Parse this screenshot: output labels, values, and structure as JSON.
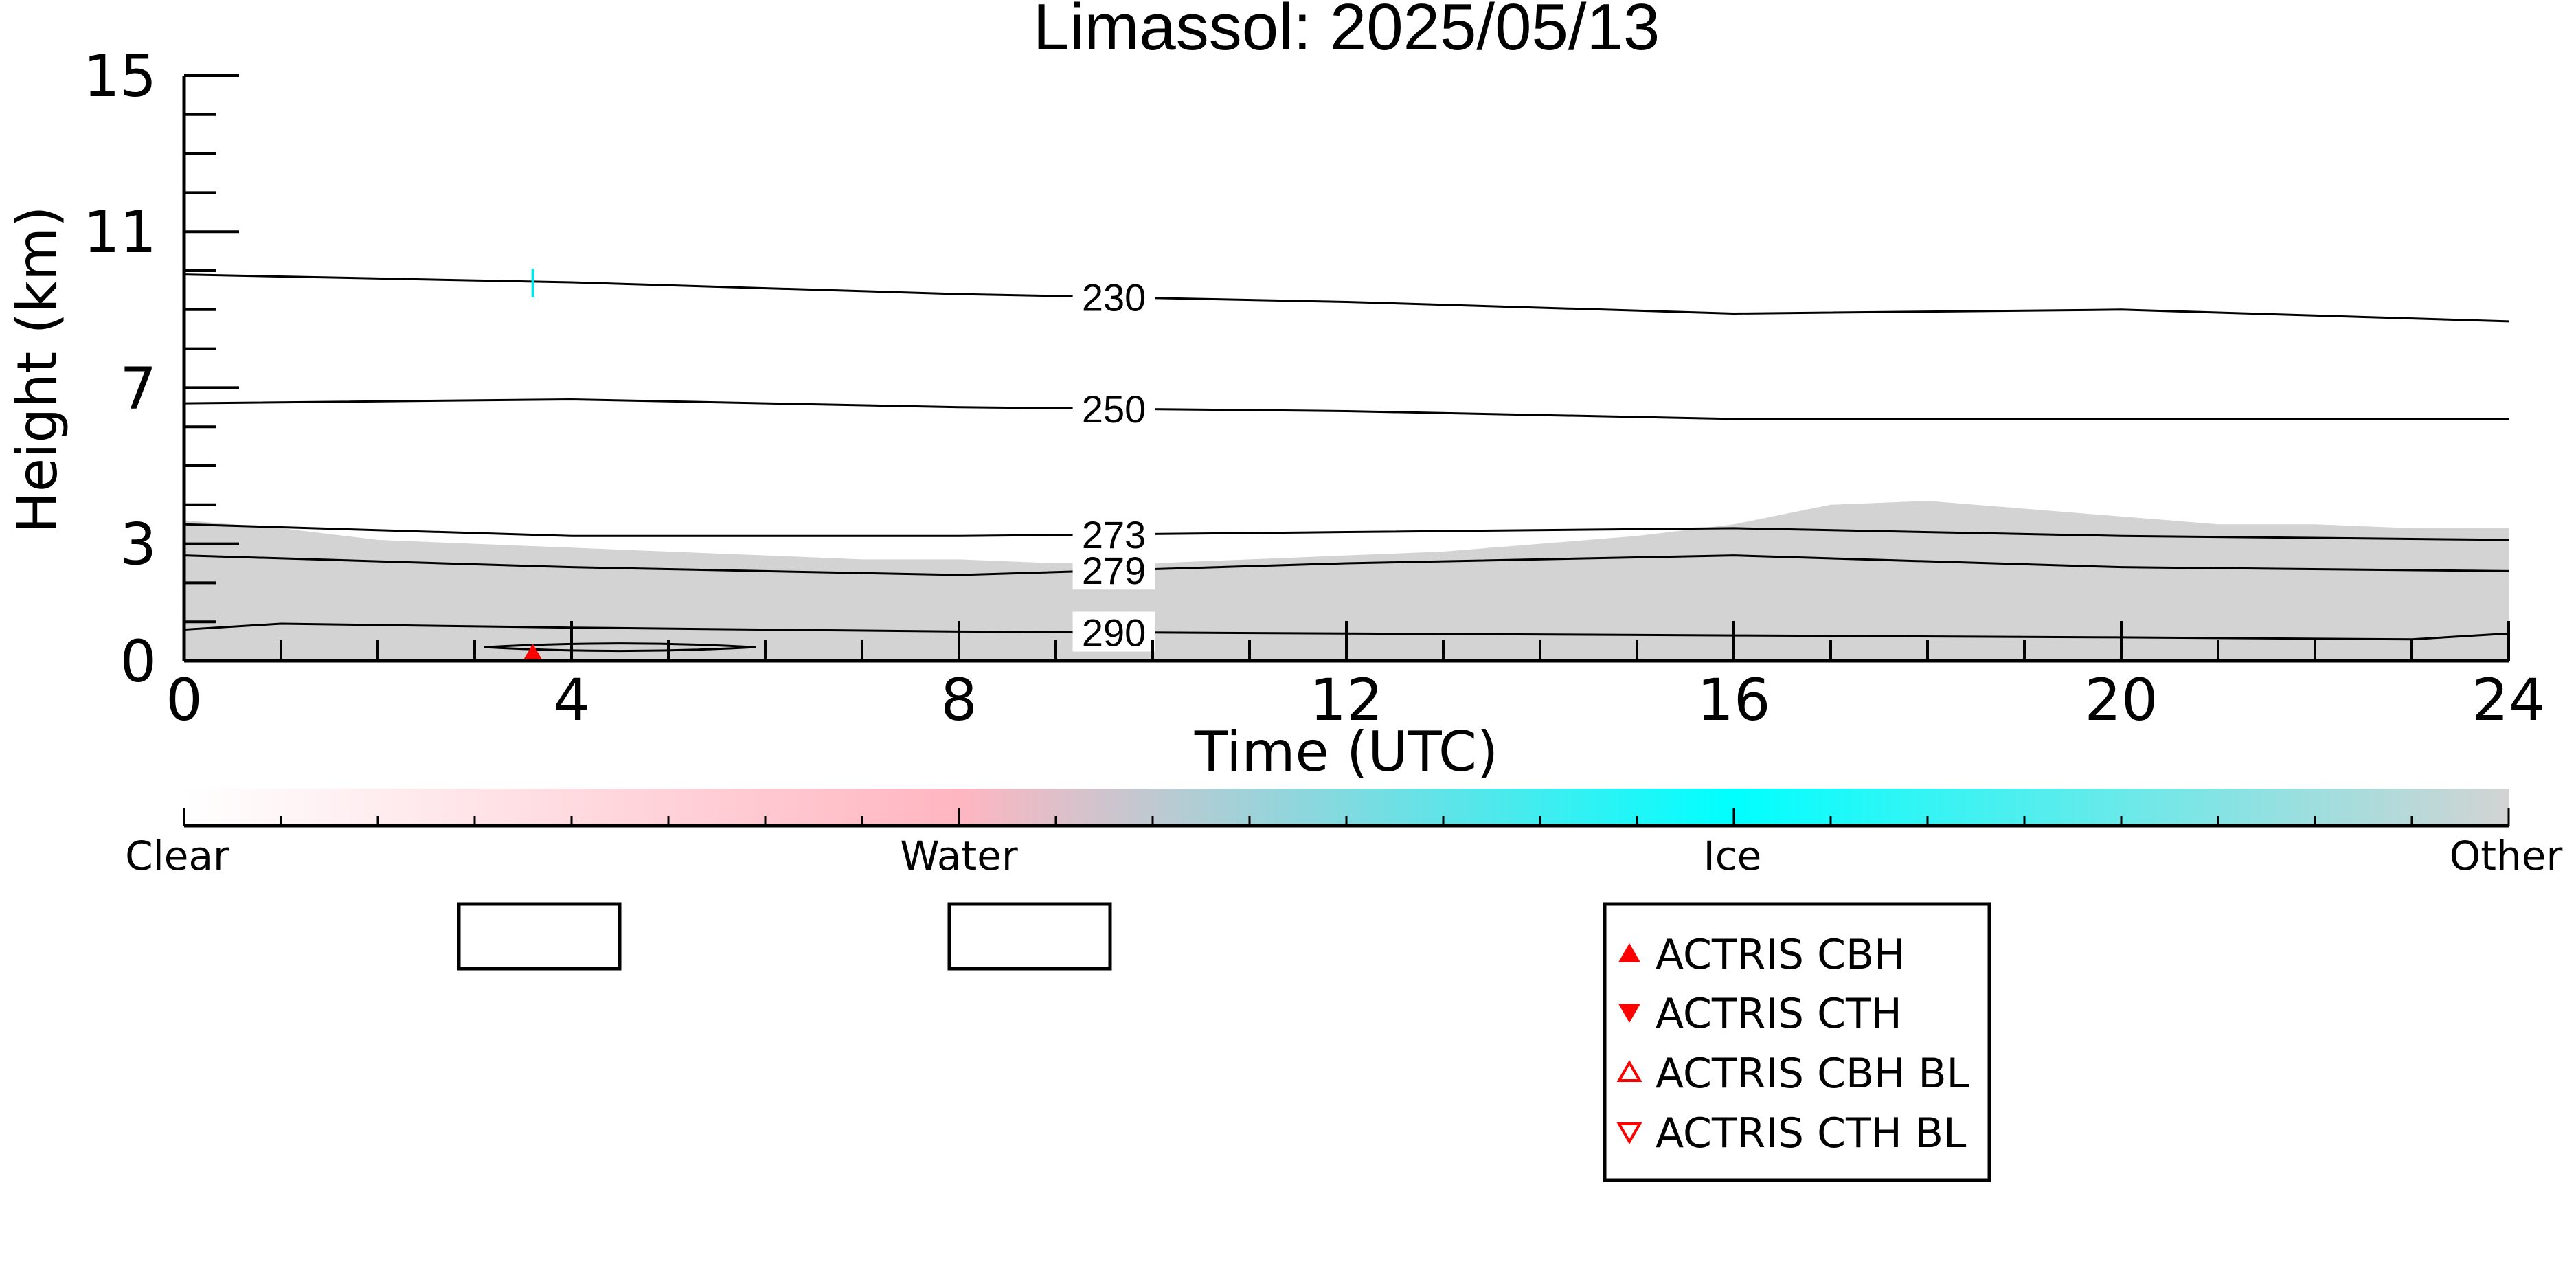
{
  "chart_data": {
    "type": "heatmap",
    "title": "Limassol: 2025/05/13",
    "xlabel": "Time (UTC)",
    "ylabel": "Height (km)",
    "xlim": [
      0,
      24
    ],
    "ylim": [
      0,
      15
    ],
    "x_ticks": [
      0,
      4,
      8,
      12,
      16,
      20,
      24
    ],
    "y_ticks": [
      0,
      3,
      7,
      11,
      15
    ],
    "categories": [
      "Clear",
      "Water",
      "Ice",
      "Other"
    ],
    "colorbar_colors": [
      "#ffffff",
      "#ffb6c1",
      "#00ffff",
      "#d3d3d3"
    ],
    "other_region_color": "#d3d3d3",
    "other_region_top": [
      {
        "x": 0,
        "y": 3.6
      },
      {
        "x": 1,
        "y": 3.4
      },
      {
        "x": 2,
        "y": 3.1
      },
      {
        "x": 3,
        "y": 3.0
      },
      {
        "x": 4,
        "y": 2.9
      },
      {
        "x": 5,
        "y": 2.8
      },
      {
        "x": 6,
        "y": 2.7
      },
      {
        "x": 7,
        "y": 2.6
      },
      {
        "x": 8,
        "y": 2.6
      },
      {
        "x": 9,
        "y": 2.5
      },
      {
        "x": 10,
        "y": 2.5
      },
      {
        "x": 11,
        "y": 2.6
      },
      {
        "x": 12,
        "y": 2.7
      },
      {
        "x": 13,
        "y": 2.8
      },
      {
        "x": 14,
        "y": 3.0
      },
      {
        "x": 15,
        "y": 3.2
      },
      {
        "x": 16,
        "y": 3.5
      },
      {
        "x": 17,
        "y": 4.0
      },
      {
        "x": 18,
        "y": 4.1
      },
      {
        "x": 19,
        "y": 3.9
      },
      {
        "x": 20,
        "y": 3.7
      },
      {
        "x": 21,
        "y": 3.5
      },
      {
        "x": 22,
        "y": 3.5
      },
      {
        "x": 23,
        "y": 3.4
      },
      {
        "x": 24,
        "y": 3.4
      }
    ],
    "contours": [
      {
        "label": "230",
        "label_x": 9.6,
        "points": [
          {
            "x": 0,
            "y": 9.9
          },
          {
            "x": 4,
            "y": 9.7
          },
          {
            "x": 8,
            "y": 9.4
          },
          {
            "x": 12,
            "y": 9.2
          },
          {
            "x": 16,
            "y": 8.9
          },
          {
            "x": 20,
            "y": 9.0
          },
          {
            "x": 24,
            "y": 8.7
          }
        ]
      },
      {
        "label": "250",
        "label_x": 9.6,
        "points": [
          {
            "x": 0,
            "y": 6.6
          },
          {
            "x": 4,
            "y": 6.7
          },
          {
            "x": 8,
            "y": 6.5
          },
          {
            "x": 12,
            "y": 6.4
          },
          {
            "x": 16,
            "y": 6.2
          },
          {
            "x": 20,
            "y": 6.2
          },
          {
            "x": 24,
            "y": 6.2
          }
        ]
      },
      {
        "label": "273",
        "label_x": 9.6,
        "points": [
          {
            "x": 0,
            "y": 3.5
          },
          {
            "x": 4,
            "y": 3.2
          },
          {
            "x": 8,
            "y": 3.2
          },
          {
            "x": 12,
            "y": 3.3
          },
          {
            "x": 16,
            "y": 3.4
          },
          {
            "x": 20,
            "y": 3.2
          },
          {
            "x": 24,
            "y": 3.1
          }
        ]
      },
      {
        "label": "279",
        "label_x": 9.6,
        "points": [
          {
            "x": 0,
            "y": 2.7
          },
          {
            "x": 4,
            "y": 2.4
          },
          {
            "x": 8,
            "y": 2.2
          },
          {
            "x": 12,
            "y": 2.5
          },
          {
            "x": 16,
            "y": 2.7
          },
          {
            "x": 20,
            "y": 2.4
          },
          {
            "x": 24,
            "y": 2.3
          }
        ]
      },
      {
        "label": "290",
        "label_x": 9.6,
        "points": [
          {
            "x": 0,
            "y": 0.8
          },
          {
            "x": 1,
            "y": 0.95
          },
          {
            "x": 4,
            "y": 0.85
          },
          {
            "x": 8,
            "y": 0.75
          },
          {
            "x": 12,
            "y": 0.7
          },
          {
            "x": 16,
            "y": 0.65
          },
          {
            "x": 20,
            "y": 0.6
          },
          {
            "x": 23,
            "y": 0.55
          },
          {
            "x": 24,
            "y": 0.7
          }
        ]
      }
    ],
    "closed_contour": {
      "center_x": 4.5,
      "center_y": 0.35,
      "half_width": 1.4,
      "half_height": 0.12
    },
    "ice_marker": {
      "x": 3.6,
      "y": 9.7
    },
    "cbh_markers": [
      {
        "x": 3.6,
        "y": 0.05
      }
    ],
    "legend_placement": "bottom-right",
    "legend": [
      {
        "label": "ACTRIS CBH",
        "symbol": "triangle-up-filled",
        "color": "#ff0000"
      },
      {
        "label": "ACTRIS CTH",
        "symbol": "triangle-down-filled",
        "color": "#ff0000"
      },
      {
        "label": "ACTRIS CBH BL",
        "symbol": "triangle-up-open",
        "color": "#ff0000"
      },
      {
        "label": "ACTRIS CTH BL",
        "symbol": "triangle-down-open",
        "color": "#ff0000"
      }
    ],
    "empty_legend_boxes": 2
  }
}
